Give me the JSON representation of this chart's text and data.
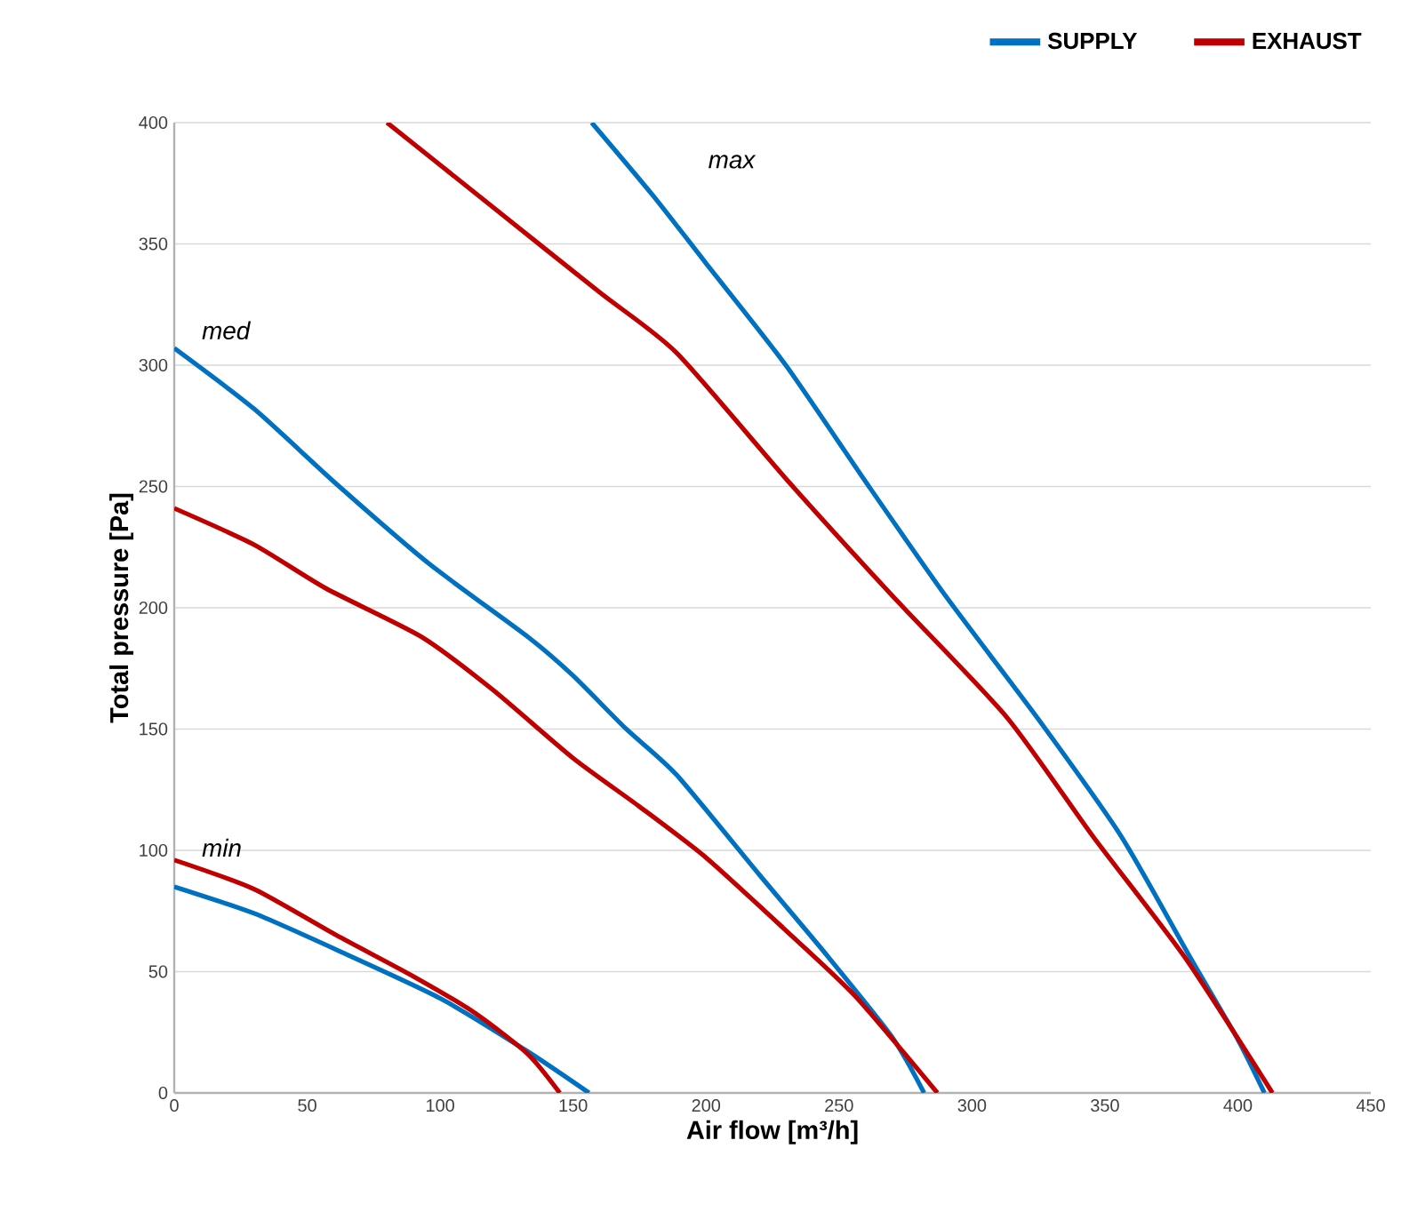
{
  "chart_data": {
    "type": "line",
    "xlabel": "Air flow [m³/h]",
    "ylabel": "Total pressure [Pa]",
    "xlim": [
      0,
      450
    ],
    "ylim": [
      0,
      400
    ],
    "xticks": [
      0,
      50,
      100,
      150,
      200,
      250,
      300,
      350,
      400,
      450
    ],
    "yticks": [
      0,
      50,
      100,
      150,
      200,
      250,
      300,
      350,
      400
    ],
    "grid": "y",
    "legend": "top right",
    "line_style": "solid",
    "series": [
      {
        "name": "SUPPLY",
        "color": "#0070c0",
        "x": [
          157,
          180,
          200,
          230,
          260,
          290,
          325,
          356,
          382,
          400,
          410
        ],
        "values": [
          400,
          370,
          342,
          300,
          252,
          205,
          154,
          106,
          56,
          22,
          0
        ]
      },
      {
        "name": "EXHAUST",
        "color": "#c00000",
        "x": [
          80,
          120,
          160,
          189,
          231,
          270,
          313,
          346,
          380,
          413
        ],
        "values": [
          400,
          365,
          330,
          305,
          252,
          205,
          155,
          105,
          56,
          0
        ]
      },
      {
        "color": "#0070c0",
        "x": [
          0,
          30,
          61,
          96,
          133,
          150,
          170,
          189,
          220,
          246,
          270,
          282
        ],
        "values": [
          307,
          282,
          251,
          218,
          188,
          172,
          150,
          131,
          90,
          56,
          23,
          0
        ]
      },
      {
        "color": "#c00000",
        "x": [
          0,
          30,
          57,
          93,
          120,
          150,
          175,
          200,
          229,
          256,
          287
        ],
        "values": [
          241,
          226,
          208,
          188,
          166,
          138,
          118,
          97,
          68,
          40,
          0
        ]
      },
      {
        "color": "#0070c0",
        "x": [
          0,
          30,
          61,
          100,
          133,
          156
        ],
        "values": [
          85,
          74,
          59,
          39,
          17,
          0
        ]
      },
      {
        "color": "#c00000",
        "x": [
          0,
          30,
          61,
          90,
          113,
          133,
          145
        ],
        "values": [
          96,
          84,
          65,
          48,
          33,
          16,
          0
        ]
      }
    ],
    "annotations": [
      "max",
      "med",
      "min"
    ]
  }
}
